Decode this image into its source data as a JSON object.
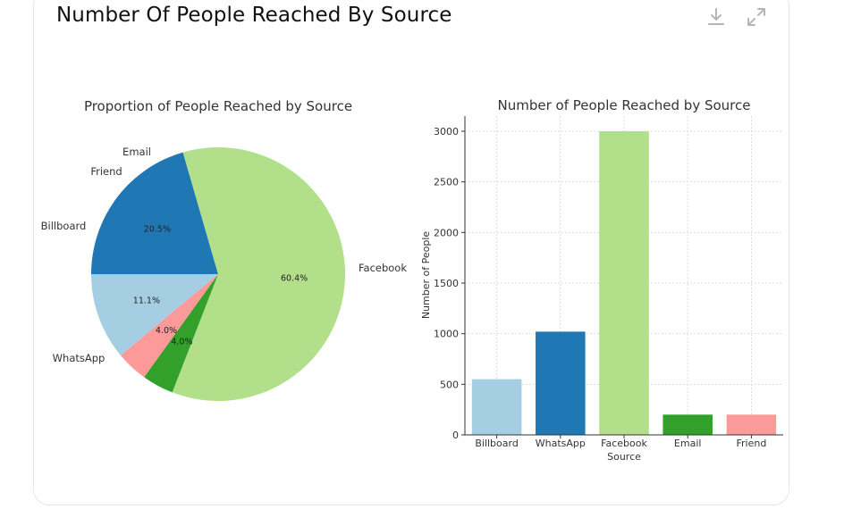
{
  "card": {
    "title": "Number Of People Reached By Source",
    "download_icon": "download-icon",
    "expand_icon": "expand-icon"
  },
  "chart_data": [
    {
      "type": "pie",
      "title": "Proportion of People Reached by Source",
      "labels": [
        "Billboard",
        "WhatsApp",
        "Facebook",
        "Email",
        "Friend"
      ],
      "values": [
        550,
        1020,
        3000,
        200,
        200
      ],
      "percent_labels": [
        "11.1%",
        "20.5%",
        "60.4%",
        "4.0%",
        "4.0%"
      ],
      "colors": [
        "#a6cee3",
        "#1f78b4",
        "#b2df8a",
        "#33a02c",
        "#fb9a99"
      ]
    },
    {
      "type": "bar",
      "title": "Number of People Reached by Source",
      "categories": [
        "Billboard",
        "WhatsApp",
        "Facebook",
        "Email",
        "Friend"
      ],
      "values": [
        550,
        1020,
        3000,
        200,
        200
      ],
      "colors": [
        "#a6cee3",
        "#1f78b4",
        "#b2df8a",
        "#33a02c",
        "#fb9a99"
      ],
      "xlabel": "Source",
      "ylabel": "Number of People",
      "ylim": [
        0,
        3150
      ],
      "yticks": [
        0,
        500,
        1000,
        1500,
        2000,
        2500,
        3000
      ],
      "grid": true
    }
  ]
}
